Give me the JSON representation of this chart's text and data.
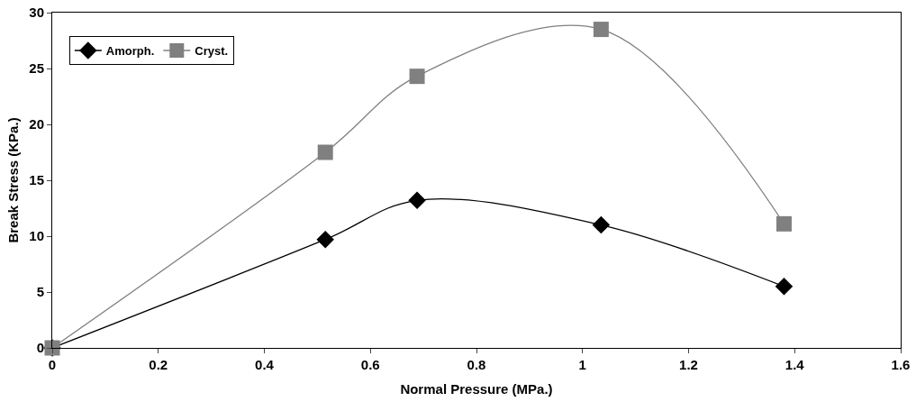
{
  "chart_data": {
    "type": "line",
    "xlabel": "Normal Pressure (MPa.)",
    "ylabel": "Break Stress (KPa.)",
    "x": [
      0,
      0.515,
      0.688,
      1.035,
      1.38
    ],
    "series": [
      {
        "name": "Amorph.",
        "color": "#000000",
        "marker": "diamond",
        "values": [
          0,
          9.7,
          13.2,
          11.0,
          5.5
        ]
      },
      {
        "name": "Cryst.",
        "color": "#808080",
        "marker": "square",
        "values": [
          0,
          17.5,
          24.3,
          28.5,
          11.1
        ]
      }
    ],
    "xlim": [
      0,
      1.6
    ],
    "xticks": [
      0,
      0.2,
      0.4,
      0.6,
      0.8,
      1,
      1.2,
      1.4,
      1.6
    ],
    "ylim": [
      0,
      30
    ],
    "yticks": [
      0,
      5,
      10,
      15,
      20,
      25,
      30
    ],
    "grid": false,
    "legend": "top left"
  }
}
